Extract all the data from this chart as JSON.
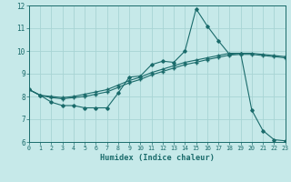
{
  "xlabel": "Humidex (Indice chaleur)",
  "xlim": [
    0,
    23
  ],
  "ylim": [
    6,
    12
  ],
  "xticks": [
    0,
    1,
    2,
    3,
    4,
    5,
    6,
    7,
    8,
    9,
    10,
    11,
    12,
    13,
    14,
    15,
    16,
    17,
    18,
    19,
    20,
    21,
    22,
    23
  ],
  "yticks": [
    6,
    7,
    8,
    9,
    10,
    11,
    12
  ],
  "background_color": "#c6e9e9",
  "grid_color": "#a8d4d4",
  "line_color": "#1a6b6b",
  "line1_x": [
    0,
    1,
    2,
    3,
    4,
    5,
    6,
    7,
    8,
    9,
    10,
    11,
    12,
    13,
    14,
    15,
    16,
    17,
    18,
    19,
    20,
    21,
    22,
    23
  ],
  "line1_y": [
    8.3,
    8.05,
    7.75,
    7.6,
    7.6,
    7.5,
    7.5,
    7.5,
    8.15,
    8.85,
    8.9,
    9.4,
    9.55,
    9.5,
    10.0,
    11.85,
    11.1,
    10.45,
    9.85,
    9.9,
    7.4,
    6.5,
    6.1,
    6.05
  ],
  "line2_x": [
    0,
    1,
    2,
    3,
    4,
    5,
    6,
    7,
    8,
    9,
    10,
    11,
    12,
    13,
    14,
    15,
    16,
    17,
    18,
    19,
    20,
    21,
    22,
    23
  ],
  "line2_y": [
    8.3,
    8.05,
    8.0,
    7.95,
    8.0,
    8.1,
    8.2,
    8.3,
    8.5,
    8.7,
    8.85,
    9.05,
    9.2,
    9.35,
    9.5,
    9.6,
    9.7,
    9.8,
    9.9,
    9.9,
    9.9,
    9.85,
    9.8,
    9.75
  ],
  "line3_x": [
    0,
    1,
    2,
    3,
    4,
    5,
    6,
    7,
    8,
    9,
    10,
    11,
    12,
    13,
    14,
    15,
    16,
    17,
    18,
    19,
    20,
    21,
    22,
    23
  ],
  "line3_y": [
    8.3,
    8.05,
    7.95,
    7.9,
    7.95,
    8.0,
    8.1,
    8.2,
    8.4,
    8.6,
    8.75,
    8.95,
    9.1,
    9.25,
    9.4,
    9.5,
    9.62,
    9.72,
    9.82,
    9.85,
    9.85,
    9.8,
    9.75,
    9.7
  ]
}
